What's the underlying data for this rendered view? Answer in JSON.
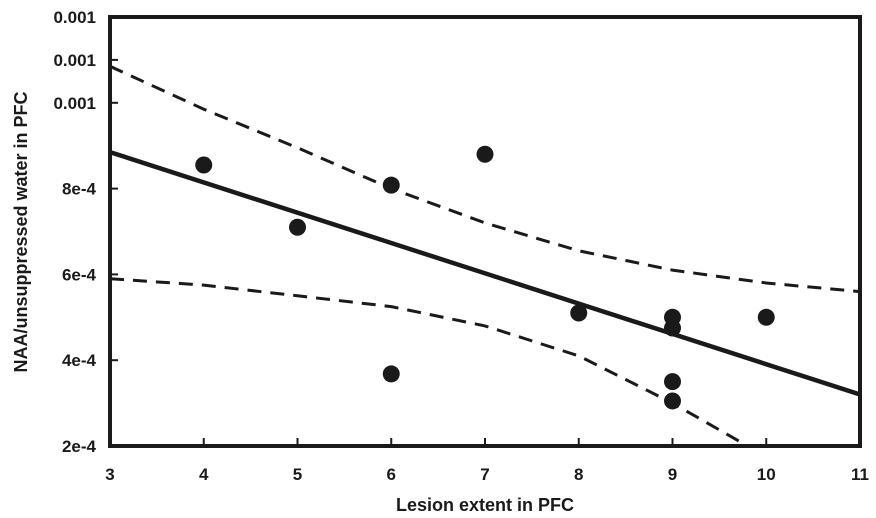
{
  "chart_data": {
    "type": "scatter",
    "title": "",
    "xlabel": "Lesion extent in PFC",
    "ylabel": "NAA/unsuppressed water in PFC",
    "xlim": [
      3,
      11
    ],
    "ylim": [
      0.0002,
      0.0012
    ],
    "x_ticks": [
      3,
      4,
      5,
      6,
      7,
      8,
      9,
      10,
      11
    ],
    "x_tick_labels": [
      "3",
      "4",
      "5",
      "6",
      "7",
      "8",
      "9",
      "10",
      "11"
    ],
    "y_ticks": [
      0.0002,
      0.0004,
      0.0006,
      0.0008,
      0.001,
      0.0011,
      0.0012
    ],
    "y_tick_labels": [
      "2e-4",
      "4e-4",
      "6e-4",
      "8e-4",
      "0.001",
      "0.001",
      "0.001"
    ],
    "grid": false,
    "legend": "none",
    "points": [
      {
        "x": 4,
        "y": 0.000855
      },
      {
        "x": 5,
        "y": 0.00071
      },
      {
        "x": 6,
        "y": 0.000808
      },
      {
        "x": 6,
        "y": 0.000368
      },
      {
        "x": 7,
        "y": 0.00088
      },
      {
        "x": 8,
        "y": 0.00051
      },
      {
        "x": 9,
        "y": 0.0005
      },
      {
        "x": 9,
        "y": 0.000475
      },
      {
        "x": 9,
        "y": 0.00035
      },
      {
        "x": 9,
        "y": 0.000305
      },
      {
        "x": 10,
        "y": 0.0005
      }
    ],
    "fit_line": {
      "style": "solid",
      "x": [
        3,
        11
      ],
      "y": [
        0.000885,
        0.00032
      ]
    },
    "confidence_upper": {
      "style": "dashed",
      "x": [
        3,
        4,
        5,
        6,
        7,
        8,
        9,
        10,
        11
      ],
      "y": [
        0.001085,
        0.000985,
        0.000895,
        0.0008,
        0.00072,
        0.000655,
        0.00061,
        0.00058,
        0.00056
      ]
    },
    "confidence_lower": {
      "style": "dashed",
      "x": [
        3,
        4,
        5,
        6,
        7,
        8,
        9,
        9.8
      ],
      "y": [
        0.00059,
        0.000575,
        0.00055,
        0.000525,
        0.00048,
        0.00041,
        0.0003,
        0.0002
      ]
    },
    "colors": {
      "marks": "#1a1a1a",
      "background": "#ffffff",
      "frame": "#1a1a1a"
    }
  }
}
